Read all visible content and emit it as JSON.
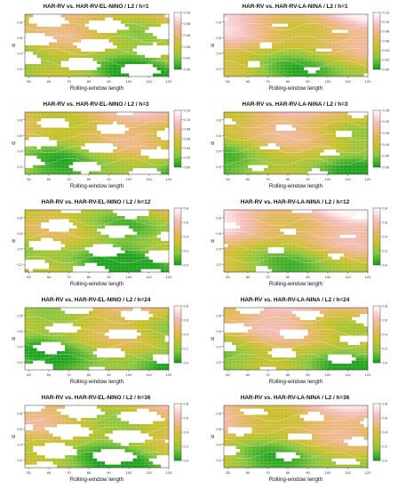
{
  "chart_data": [
    {
      "type": "heatmap",
      "title": "HAR-RV vs. HAR-RV-EL-NINO / L2 / h=1",
      "xlabel": "Rolling-window length",
      "ylabel": "α",
      "xlim": [
        48,
        120
      ],
      "ylim": [
        0.1,
        0.9
      ],
      "x_ticks": [
        50,
        60,
        70,
        80,
        90,
        100,
        110,
        120
      ],
      "y_ticks": [
        0.2,
        0.4,
        0.6,
        0.8
      ],
      "colorbar": {
        "min": 0,
        "max": 0.1,
        "ticks": [
          0.0,
          0.02,
          0.04,
          0.06,
          0.08,
          0.1
        ],
        "labels": [
          "0.00",
          "0.02",
          "0.04",
          "0.06",
          "0.08",
          "0.10"
        ]
      },
      "level": 0.35,
      "white_coverage": 0.4
    },
    {
      "type": "heatmap",
      "title": "HAR-RV vs. HAR-RV-LA-NINA / L2 / h=1",
      "xlabel": "Rolling-window length",
      "ylabel": "α",
      "xlim": [
        48,
        120
      ],
      "ylim": [
        0.1,
        0.9
      ],
      "x_ticks": [
        50,
        60,
        70,
        80,
        90,
        100,
        110,
        120
      ],
      "y_ticks": [
        0.2,
        0.4,
        0.6,
        0.8
      ],
      "colorbar": {
        "min": 0,
        "max": 0.12,
        "ticks": [
          0.0,
          0.02,
          0.04,
          0.06,
          0.08,
          0.1,
          0.12
        ],
        "labels": [
          "0.00",
          "0.02",
          "0.04",
          "0.06",
          "0.08",
          "0.10",
          "0.12"
        ]
      },
      "level": 0.5,
      "white_coverage": 0.08
    },
    {
      "type": "heatmap",
      "title": "HAR-RV vs. HAR-RV-EL-NINO / L2 / h=3",
      "xlabel": "Rolling-window length",
      "ylabel": "α",
      "xlim": [
        48,
        120
      ],
      "ylim": [
        0.1,
        0.9
      ],
      "x_ticks": [
        50,
        60,
        70,
        80,
        90,
        100,
        110,
        120
      ],
      "y_ticks": [
        0.2,
        0.4,
        0.6,
        0.8
      ],
      "colorbar": {
        "min": 0,
        "max": 0.12,
        "ticks": [
          0.0,
          0.02,
          0.04,
          0.06,
          0.08,
          0.1,
          0.12
        ],
        "labels": [
          "0.00",
          "0.02",
          "0.04",
          "0.06",
          "0.08",
          "0.10",
          "0.12"
        ]
      },
      "level": 0.4,
      "white_coverage": 0.3
    },
    {
      "type": "heatmap",
      "title": "HAR-RV vs. HAR-RV-LA-NINA / L2 / h=3",
      "xlabel": "Rolling-window length",
      "ylabel": "α",
      "xlim": [
        48,
        120
      ],
      "ylim": [
        0.1,
        0.9
      ],
      "x_ticks": [
        50,
        60,
        70,
        80,
        90,
        100,
        110,
        120
      ],
      "y_ticks": [
        0.2,
        0.4,
        0.6,
        0.8
      ],
      "colorbar": {
        "min": 0,
        "max": 0.25,
        "ticks": [
          0.0,
          0.05,
          0.1,
          0.15,
          0.2,
          0.25
        ],
        "labels": [
          "0.00",
          "0.05",
          "0.10",
          "0.15",
          "0.20",
          "0.25"
        ]
      },
      "level": 0.4,
      "white_coverage": 0.12
    },
    {
      "type": "heatmap",
      "title": "HAR-RV vs. HAR-RV-EL-NINO / L2 / h=12",
      "xlabel": "Rolling-window length",
      "ylabel": "α",
      "xlim": [
        48,
        120
      ],
      "ylim": [
        0.1,
        0.9
      ],
      "x_ticks": [
        50,
        60,
        70,
        80,
        90,
        100,
        110,
        120
      ],
      "y_ticks": [
        0.2,
        0.4,
        0.6,
        0.8
      ],
      "colorbar": {
        "min": 0,
        "max": 0.8,
        "ticks": [
          0.0,
          0.2,
          0.4,
          0.6,
          0.8
        ],
        "labels": [
          "0.0",
          "0.2",
          "0.4",
          "0.6",
          "0.8"
        ]
      },
      "level": 0.25,
      "white_coverage": 0.35
    },
    {
      "type": "heatmap",
      "title": "HAR-RV vs. HAR-RV-LA-NINA / L2 / h=12",
      "xlabel": "Rolling-window length",
      "ylabel": "α",
      "xlim": [
        48,
        120
      ],
      "ylim": [
        0.1,
        0.9
      ],
      "x_ticks": [
        50,
        60,
        70,
        80,
        90,
        100,
        110,
        120
      ],
      "y_ticks": [
        0.2,
        0.4,
        0.6,
        0.8
      ],
      "colorbar": {
        "min": 0,
        "max": 0.8,
        "ticks": [
          0.0,
          0.2,
          0.4,
          0.6,
          0.8
        ],
        "labels": [
          "0.0",
          "0.2",
          "0.4",
          "0.6",
          "0.8"
        ]
      },
      "level": 0.55,
      "white_coverage": 0.1
    },
    {
      "type": "heatmap",
      "title": "HAR-RV vs. HAR-RV-EL-NINO / L2 / h=24",
      "xlabel": "Rolling-window length",
      "ylabel": "α",
      "xlim": [
        48,
        120
      ],
      "ylim": [
        0.1,
        0.9
      ],
      "x_ticks": [
        50,
        60,
        70,
        80,
        90,
        100,
        110,
        120
      ],
      "y_ticks": [
        0.2,
        0.4,
        0.6,
        0.8
      ],
      "colorbar": {
        "min": 0,
        "max": 0.8,
        "ticks": [
          0.0,
          0.2,
          0.4,
          0.6,
          0.8
        ],
        "labels": [
          "0.0",
          "0.2",
          "0.4",
          "0.6",
          "0.8"
        ]
      },
      "level": 0.3,
      "white_coverage": 0.3
    },
    {
      "type": "heatmap",
      "title": "HAR-RV vs. HAR-RV-LA-NINA / L2 / h=24",
      "xlabel": "Rolling-window length",
      "ylabel": "α",
      "xlim": [
        48,
        120
      ],
      "ylim": [
        0.1,
        0.9
      ],
      "x_ticks": [
        50,
        60,
        70,
        80,
        90,
        100,
        110,
        120
      ],
      "y_ticks": [
        0.2,
        0.4,
        0.6,
        0.8
      ],
      "colorbar": {
        "min": 0,
        "max": 0.8,
        "ticks": [
          0.0,
          0.2,
          0.4,
          0.6,
          0.8
        ],
        "labels": [
          "0.0",
          "0.2",
          "0.4",
          "0.6",
          "0.8"
        ]
      },
      "level": 0.45,
      "white_coverage": 0.25
    },
    {
      "type": "heatmap",
      "title": "HAR-RV vs. HAR-RV-EL-NINO / L2 / h=36",
      "xlabel": "Rolling-window length",
      "ylabel": "α",
      "xlim": [
        48,
        120
      ],
      "ylim": [
        0.1,
        0.9
      ],
      "x_ticks": [
        50,
        60,
        70,
        80,
        90,
        100,
        110,
        120
      ],
      "y_ticks": [
        0.2,
        0.4,
        0.6,
        0.8
      ],
      "colorbar": {
        "min": 0,
        "max": 0.8,
        "ticks": [
          0.0,
          0.2,
          0.4,
          0.6,
          0.8
        ],
        "labels": [
          "0.0",
          "0.2",
          "0.4",
          "0.6",
          "0.8"
        ]
      },
      "level": 0.35,
      "white_coverage": 0.45
    },
    {
      "type": "heatmap",
      "title": "HAR-RV vs. HAR-RV-LA-NINA / L2 / h=36",
      "xlabel": "Rolling-window length",
      "ylabel": "α",
      "xlim": [
        48,
        120
      ],
      "ylim": [
        0.1,
        0.9
      ],
      "x_ticks": [
        50,
        60,
        70,
        80,
        90,
        100,
        110,
        120
      ],
      "y_ticks": [
        0.2,
        0.4,
        0.6,
        0.8
      ],
      "colorbar": {
        "min": 0,
        "max": 0.8,
        "ticks": [
          0.0,
          0.2,
          0.4,
          0.6,
          0.8
        ],
        "labels": [
          "0.0",
          "0.2",
          "0.4",
          "0.6",
          "0.8"
        ]
      },
      "level": 0.45,
      "white_coverage": 0.2
    }
  ],
  "colors": {
    "low": "#1fa31f",
    "mid_low": "#8cc63c",
    "mid": "#c8c02a",
    "mid_high": "#e8b66a",
    "high": "#f4bcbc",
    "top": "#fff4f4",
    "contour": "#ffffff",
    "axis": "#333333"
  }
}
